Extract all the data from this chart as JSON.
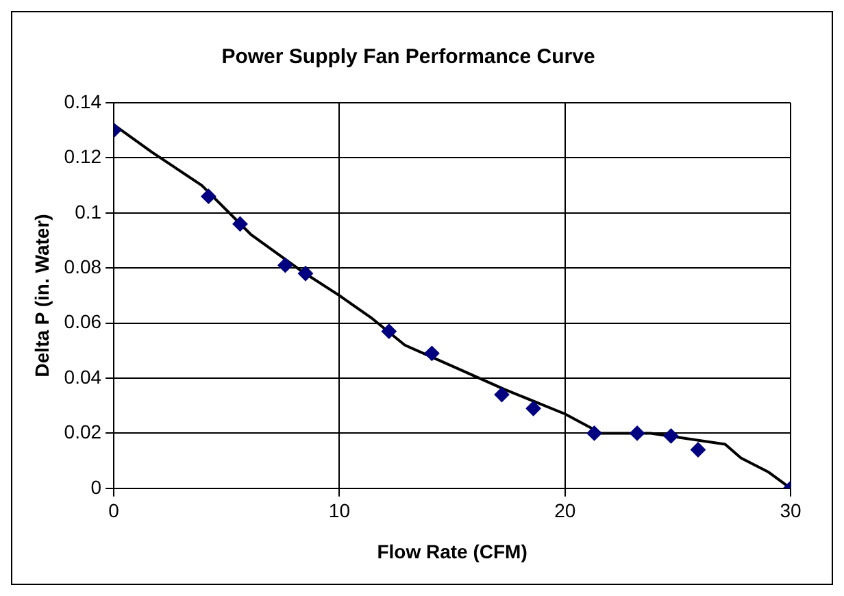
{
  "chart_data": {
    "type": "scatter",
    "title": "Power Supply Fan Performance Curve",
    "xlabel": "Flow Rate (CFM)",
    "ylabel": "Delta P (in. Water)",
    "series": [
      {
        "color": "#000080",
        "marker": "diamond",
        "x": [
          0,
          4.2,
          5.6,
          7.6,
          8.5,
          12.2,
          14.1,
          17.2,
          18.6,
          21.3,
          23.2,
          24.7,
          25.9,
          30
        ],
        "values": [
          0.13,
          0.106,
          0.096,
          0.081,
          0.078,
          0.057,
          0.049,
          0.034,
          0.029,
          0.02,
          0.02,
          0.019,
          0.014,
          0
        ]
      },
      {
        "type": "line",
        "color": "#000000",
        "marker": "none",
        "line_style": "solid",
        "x": [
          0,
          1.7,
          3.9,
          6.1,
          8.3,
          10,
          11.4,
          12.9,
          15.1,
          17.3,
          20,
          21.6,
          23.8,
          27.1,
          27.8,
          29,
          30
        ],
        "values": [
          0.132,
          0.122,
          0.11,
          0.092,
          0.079,
          0.07,
          0.062,
          0.052,
          0.044,
          0.036,
          0.027,
          0.02,
          0.02,
          0.016,
          0.011,
          0.006,
          0
        ]
      }
    ],
    "xlim": [
      0,
      30
    ],
    "xticks": [
      0,
      10,
      20,
      30
    ],
    "ylim": [
      0,
      0.14
    ],
    "yticks": [
      0,
      0.02,
      0.04,
      0.06,
      0.08,
      0.1,
      0.12,
      0.14
    ],
    "grid": true,
    "legend": false
  }
}
